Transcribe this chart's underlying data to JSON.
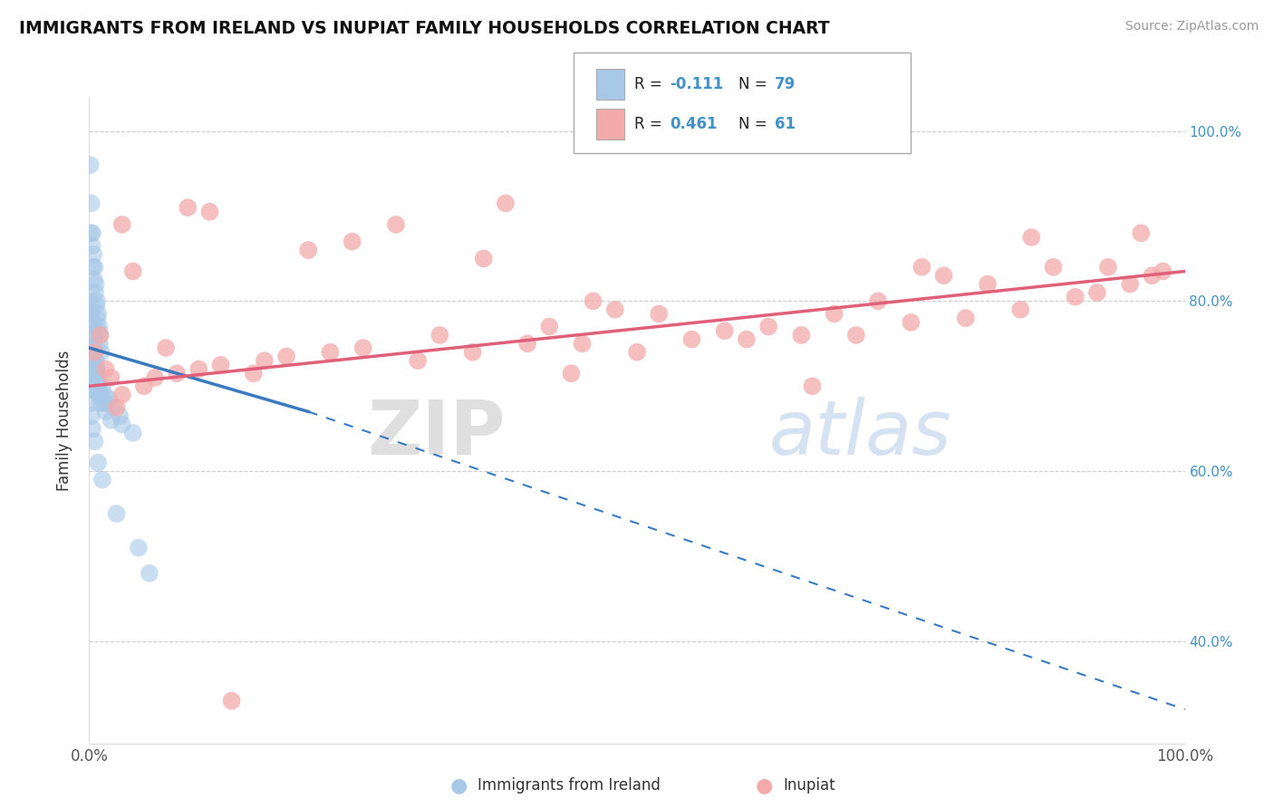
{
  "title": "IMMIGRANTS FROM IRELAND VS INUPIAT FAMILY HOUSEHOLDS CORRELATION CHART",
  "source": "Source: ZipAtlas.com",
  "ylabel": "Family Households",
  "legend_label1": "Immigrants from Ireland",
  "legend_label2": "Inupiat",
  "blue_color": "#a8c8e8",
  "pink_color": "#f4aaaa",
  "blue_line_color": "#3a7abf",
  "pink_line_color": "#e0607a",
  "watermark_zip": "ZIP",
  "watermark_atlas": "atlas",
  "blue_scatter_x": [
    0.1,
    0.2,
    0.3,
    0.4,
    0.5,
    0.6,
    0.7,
    0.8,
    0.9,
    1.0,
    0.15,
    0.25,
    0.35,
    0.45,
    0.55,
    0.65,
    0.75,
    0.85,
    0.95,
    1.1,
    0.1,
    0.2,
    0.3,
    0.4,
    0.5,
    0.6,
    0.7,
    0.8,
    1.2,
    1.4,
    0.15,
    0.25,
    0.35,
    0.45,
    0.55,
    0.65,
    0.75,
    0.85,
    1.0,
    1.3,
    0.1,
    0.2,
    0.3,
    0.4,
    0.5,
    0.6,
    0.7,
    0.8,
    0.9,
    1.5,
    0.15,
    0.25,
    0.35,
    0.45,
    0.55,
    0.65,
    1.8,
    2.2,
    2.8,
    0.1,
    0.2,
    0.3,
    0.4,
    0.5,
    1.0,
    1.5,
    2.0,
    3.0,
    4.0,
    0.1,
    0.2,
    0.3,
    0.5,
    0.8,
    1.2,
    2.5,
    4.5,
    5.5
  ],
  "blue_scatter_y": [
    96.0,
    91.5,
    88.0,
    85.5,
    84.0,
    82.0,
    80.0,
    78.5,
    77.0,
    76.0,
    88.0,
    86.5,
    84.0,
    82.5,
    81.0,
    79.5,
    78.0,
    76.5,
    75.0,
    74.0,
    80.0,
    78.5,
    77.0,
    75.5,
    74.0,
    73.0,
    72.0,
    71.0,
    70.0,
    69.0,
    79.0,
    77.5,
    76.0,
    74.5,
    73.0,
    72.0,
    71.0,
    70.0,
    69.0,
    68.0,
    76.0,
    74.5,
    73.0,
    72.0,
    71.0,
    70.5,
    70.0,
    69.5,
    69.0,
    68.0,
    74.0,
    73.0,
    72.0,
    71.0,
    70.0,
    69.5,
    68.5,
    67.5,
    66.5,
    72.0,
    71.0,
    70.5,
    70.0,
    69.5,
    68.0,
    67.0,
    66.0,
    65.5,
    64.5,
    68.0,
    66.5,
    65.0,
    63.5,
    61.0,
    59.0,
    55.0,
    51.0,
    48.0
  ],
  "pink_scatter_x": [
    0.5,
    1.5,
    3.0,
    6.0,
    10.0,
    15.0,
    22.0,
    30.0,
    40.0,
    50.0,
    60.0,
    70.0,
    80.0,
    90.0,
    95.0,
    98.0,
    2.0,
    5.0,
    8.0,
    12.0,
    18.0,
    25.0,
    35.0,
    45.0,
    55.0,
    65.0,
    75.0,
    85.0,
    92.0,
    97.0,
    4.0,
    9.0,
    20.0,
    28.0,
    38.0,
    48.0,
    58.0,
    68.0,
    78.0,
    88.0,
    1.0,
    7.0,
    16.0,
    32.0,
    42.0,
    52.0,
    72.0,
    82.0,
    93.0,
    3.0,
    11.0,
    24.0,
    36.0,
    46.0,
    62.0,
    76.0,
    86.0,
    96.0,
    2.5,
    13.0,
    44.0,
    66.0
  ],
  "pink_scatter_y": [
    74.0,
    72.0,
    69.0,
    71.0,
    72.0,
    71.5,
    74.0,
    73.0,
    75.0,
    74.0,
    75.5,
    76.0,
    78.0,
    80.5,
    82.0,
    83.5,
    71.0,
    70.0,
    71.5,
    72.5,
    73.5,
    74.5,
    74.0,
    75.0,
    75.5,
    76.0,
    77.5,
    79.0,
    81.0,
    83.0,
    83.5,
    91.0,
    86.0,
    89.0,
    91.5,
    79.0,
    76.5,
    78.5,
    83.0,
    84.0,
    76.0,
    74.5,
    73.0,
    76.0,
    77.0,
    78.5,
    80.0,
    82.0,
    84.0,
    89.0,
    90.5,
    87.0,
    85.0,
    80.0,
    77.0,
    84.0,
    87.5,
    88.0,
    67.5,
    33.0,
    71.5,
    70.0
  ],
  "xmin": 0.0,
  "xmax": 100.0,
  "ymin": 28.0,
  "ymax": 104.0,
  "blue_trend_start_x": 0.0,
  "blue_trend_end_x": 100.0,
  "blue_trend_start_y": 74.5,
  "blue_trend_end_y": 32.0,
  "pink_trend_start_x": 0.0,
  "pink_trend_end_x": 100.0,
  "pink_trend_start_y": 70.0,
  "pink_trend_end_y": 83.5,
  "blue_solid_end_x": 20.0,
  "blue_solid_end_y": 67.0
}
